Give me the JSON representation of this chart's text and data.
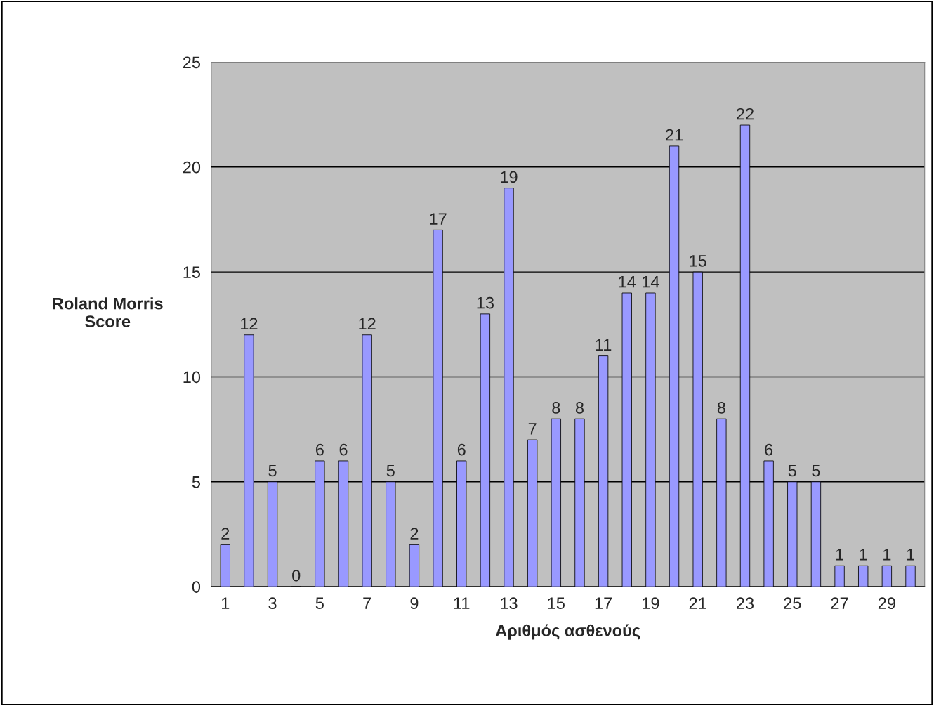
{
  "chart_data": {
    "type": "bar",
    "categories": [
      "1",
      null,
      "3",
      null,
      "5",
      null,
      "7",
      null,
      "9",
      null,
      "11",
      null,
      "13",
      null,
      "15",
      null,
      "17",
      null,
      "19",
      null,
      "21",
      null,
      "23",
      null,
      "25",
      null,
      "27",
      null,
      "29",
      null
    ],
    "values": [
      2,
      12,
      5,
      0,
      6,
      6,
      12,
      5,
      2,
      17,
      6,
      13,
      19,
      7,
      8,
      8,
      11,
      14,
      14,
      21,
      15,
      8,
      22,
      6,
      5,
      5,
      1,
      1,
      1,
      1
    ],
    "color": "#9999ff",
    "xlabel": "Αριθμός ασθενούς",
    "ylabel": "Roland Morris Score",
    "ylim": [
      0,
      25
    ],
    "yticks": [
      0,
      5,
      10,
      15,
      20,
      25
    ],
    "grid": "y",
    "data_labels": true,
    "legend": false
  }
}
